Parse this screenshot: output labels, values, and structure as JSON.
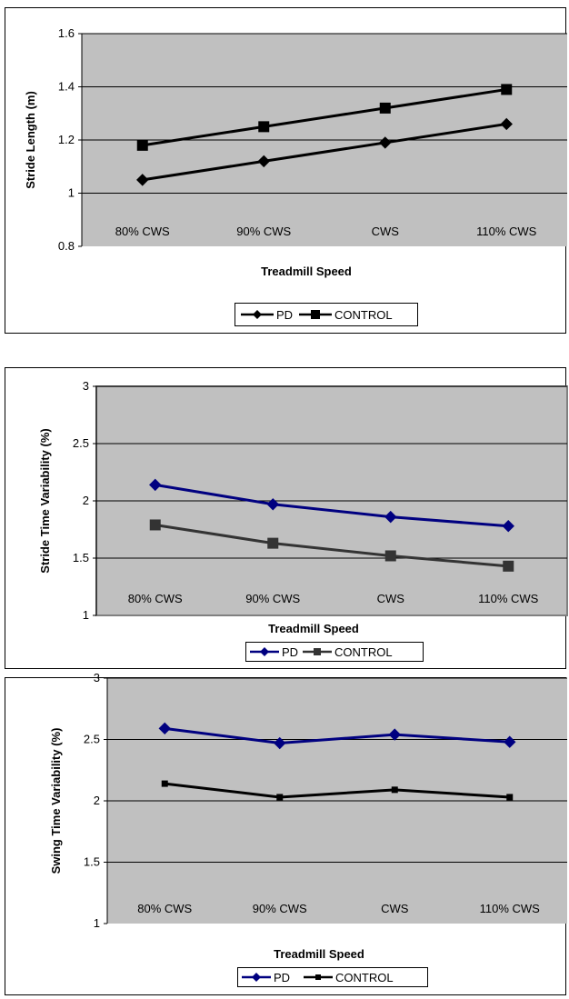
{
  "chart_data": [
    {
      "type": "line",
      "xlabel": "Treadmill Speed",
      "ylabel": "Stride Length (m)",
      "categories": [
        "80% CWS",
        "90% CWS",
        "CWS",
        "110% CWS"
      ],
      "ylim": [
        0.8,
        1.6
      ],
      "yticks": [
        "0.8",
        "1",
        "1.2",
        "1.4",
        "1.6"
      ],
      "grid": true,
      "legend_position": "bottom",
      "series": [
        {
          "name": "PD",
          "values": [
            1.05,
            1.12,
            1.19,
            1.26
          ],
          "marker": "diamond",
          "color": "#000000"
        },
        {
          "name": "CONTROL",
          "values": [
            1.18,
            1.25,
            1.32,
            1.39
          ],
          "marker": "square",
          "color": "#000000"
        }
      ]
    },
    {
      "type": "line",
      "xlabel": "Treadmill Speed",
      "ylabel": "Stride Time Variability (%)",
      "categories": [
        "80% CWS",
        "90% CWS",
        "CWS",
        "110% CWS"
      ],
      "ylim": [
        1,
        3
      ],
      "yticks": [
        "1",
        "1.5",
        "2",
        "2.5",
        "3"
      ],
      "grid": true,
      "legend_position": "bottom",
      "series": [
        {
          "name": "PD",
          "values": [
            2.14,
            1.97,
            1.86,
            1.78
          ],
          "marker": "diamond",
          "color": "#000080"
        },
        {
          "name": "CONTROL",
          "values": [
            1.79,
            1.63,
            1.52,
            1.43
          ],
          "marker": "square",
          "color": "#333333"
        }
      ]
    },
    {
      "type": "line",
      "xlabel": "Treadmill Speed",
      "ylabel": "Swing Time Variability (%)",
      "categories": [
        "80% CWS",
        "90% CWS",
        "CWS",
        "110% CWS"
      ],
      "ylim": [
        1,
        3
      ],
      "yticks": [
        "1",
        "1.5",
        "2",
        "2.5",
        "3"
      ],
      "grid": true,
      "legend_position": "bottom",
      "series": [
        {
          "name": "PD",
          "values": [
            2.59,
            2.47,
            2.54,
            2.48
          ],
          "marker": "diamond",
          "color": "#000080"
        },
        {
          "name": "CONTROL",
          "values": [
            2.14,
            2.03,
            2.09,
            2.03
          ],
          "marker": "square-small",
          "color": "#000000"
        }
      ]
    }
  ],
  "colors": {
    "plot_area": "#c0c0c0",
    "gridline": "#000000",
    "frame": "#808080"
  }
}
